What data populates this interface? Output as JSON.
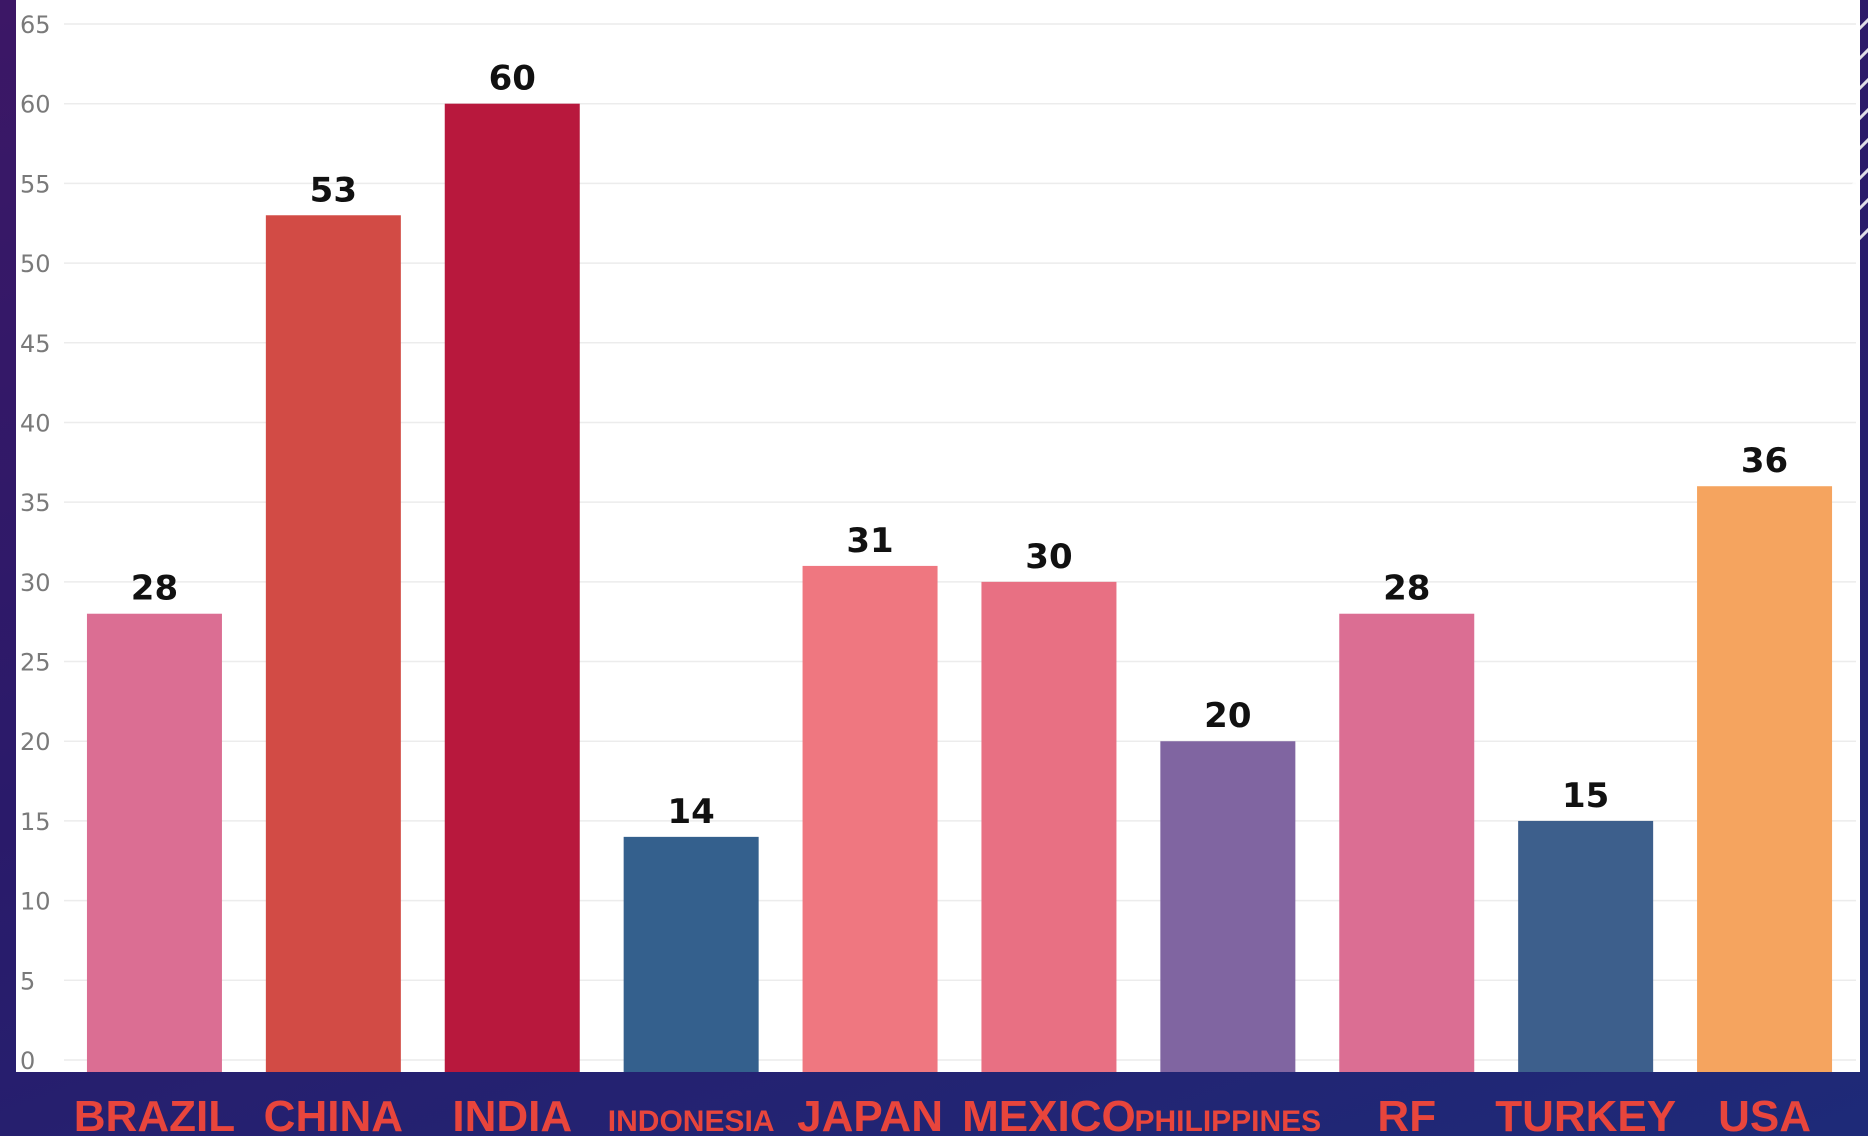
{
  "chart_data": {
    "type": "bar",
    "categories": [
      "BRAZIL",
      "CHINA",
      "INDIA",
      "INDONESIA",
      "JAPAN",
      "MEXICO",
      "PHILIPPINES",
      "RF",
      "TURKEY",
      "USA"
    ],
    "values": [
      28,
      53,
      60,
      14,
      31,
      30,
      20,
      28,
      15,
      36
    ],
    "colors": [
      "#db6e93",
      "#d24b45",
      "#b8183d",
      "#34608d",
      "#ef7780",
      "#e87083",
      "#8065a1",
      "#db6e93",
      "#3d5f8c",
      "#f5a45f"
    ],
    "yticks": [
      0,
      5,
      10,
      15,
      20,
      25,
      30,
      35,
      40,
      45,
      50,
      55,
      60,
      65
    ],
    "ylim": [
      0,
      65
    ],
    "grid": true,
    "title": "",
    "xlabel": "",
    "ylabel": "",
    "category_label_color": "#e8453c"
  }
}
